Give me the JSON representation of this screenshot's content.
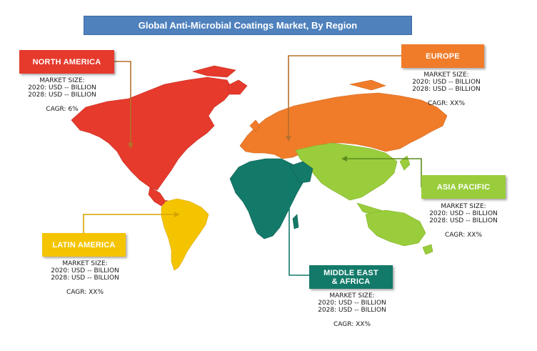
{
  "title": "Global Anti-Microbial Coatings Market, By Region",
  "colors": {
    "north_america": "#e63a2c",
    "europe": "#f07c2a",
    "asia_pacific": "#9acd3c",
    "latin_america": "#f5c400",
    "middle_east_africa": "#137a6a",
    "title_bar": "#4f81bd"
  },
  "regions": {
    "north_america": {
      "name": "NORTH AMERICA",
      "market_size_label": "MARKET SIZE:",
      "line_2020": "2020: USD -- BILLION",
      "line_2028": "2028: USD -- BILLION",
      "cagr": "CAGR: 6%"
    },
    "europe": {
      "name": "EUROPE",
      "market_size_label": "MARKET SIZE:",
      "line_2020": "2020: USD -- BILLION",
      "line_2028": "2028: USD -- BILLION",
      "cagr": "CAGR: XX%"
    },
    "asia_pacific": {
      "name": "ASIA PACIFIC",
      "market_size_label": "MARKET SIZE:",
      "line_2020": "2020: USD -- BILLION",
      "line_2028": "2028: USD -- BILLION",
      "cagr": "CAGR: XX%"
    },
    "latin_america": {
      "name": "LATIN AMERICA",
      "market_size_label": "MARKET SIZE:",
      "line_2020": "2020: USD -- BILLION",
      "line_2028": "2028: USD -- BILLION",
      "cagr": "CAGR: XX%"
    },
    "middle_east_africa": {
      "name_line1": "MIDDLE EAST",
      "name_line2": "& AFRICA",
      "market_size_label": "MARKET SIZE:",
      "line_2020": "2020: USD -- BILLION",
      "line_2028": "2028: USD -- BILLION",
      "cagr": "CAGR: XX%"
    }
  }
}
